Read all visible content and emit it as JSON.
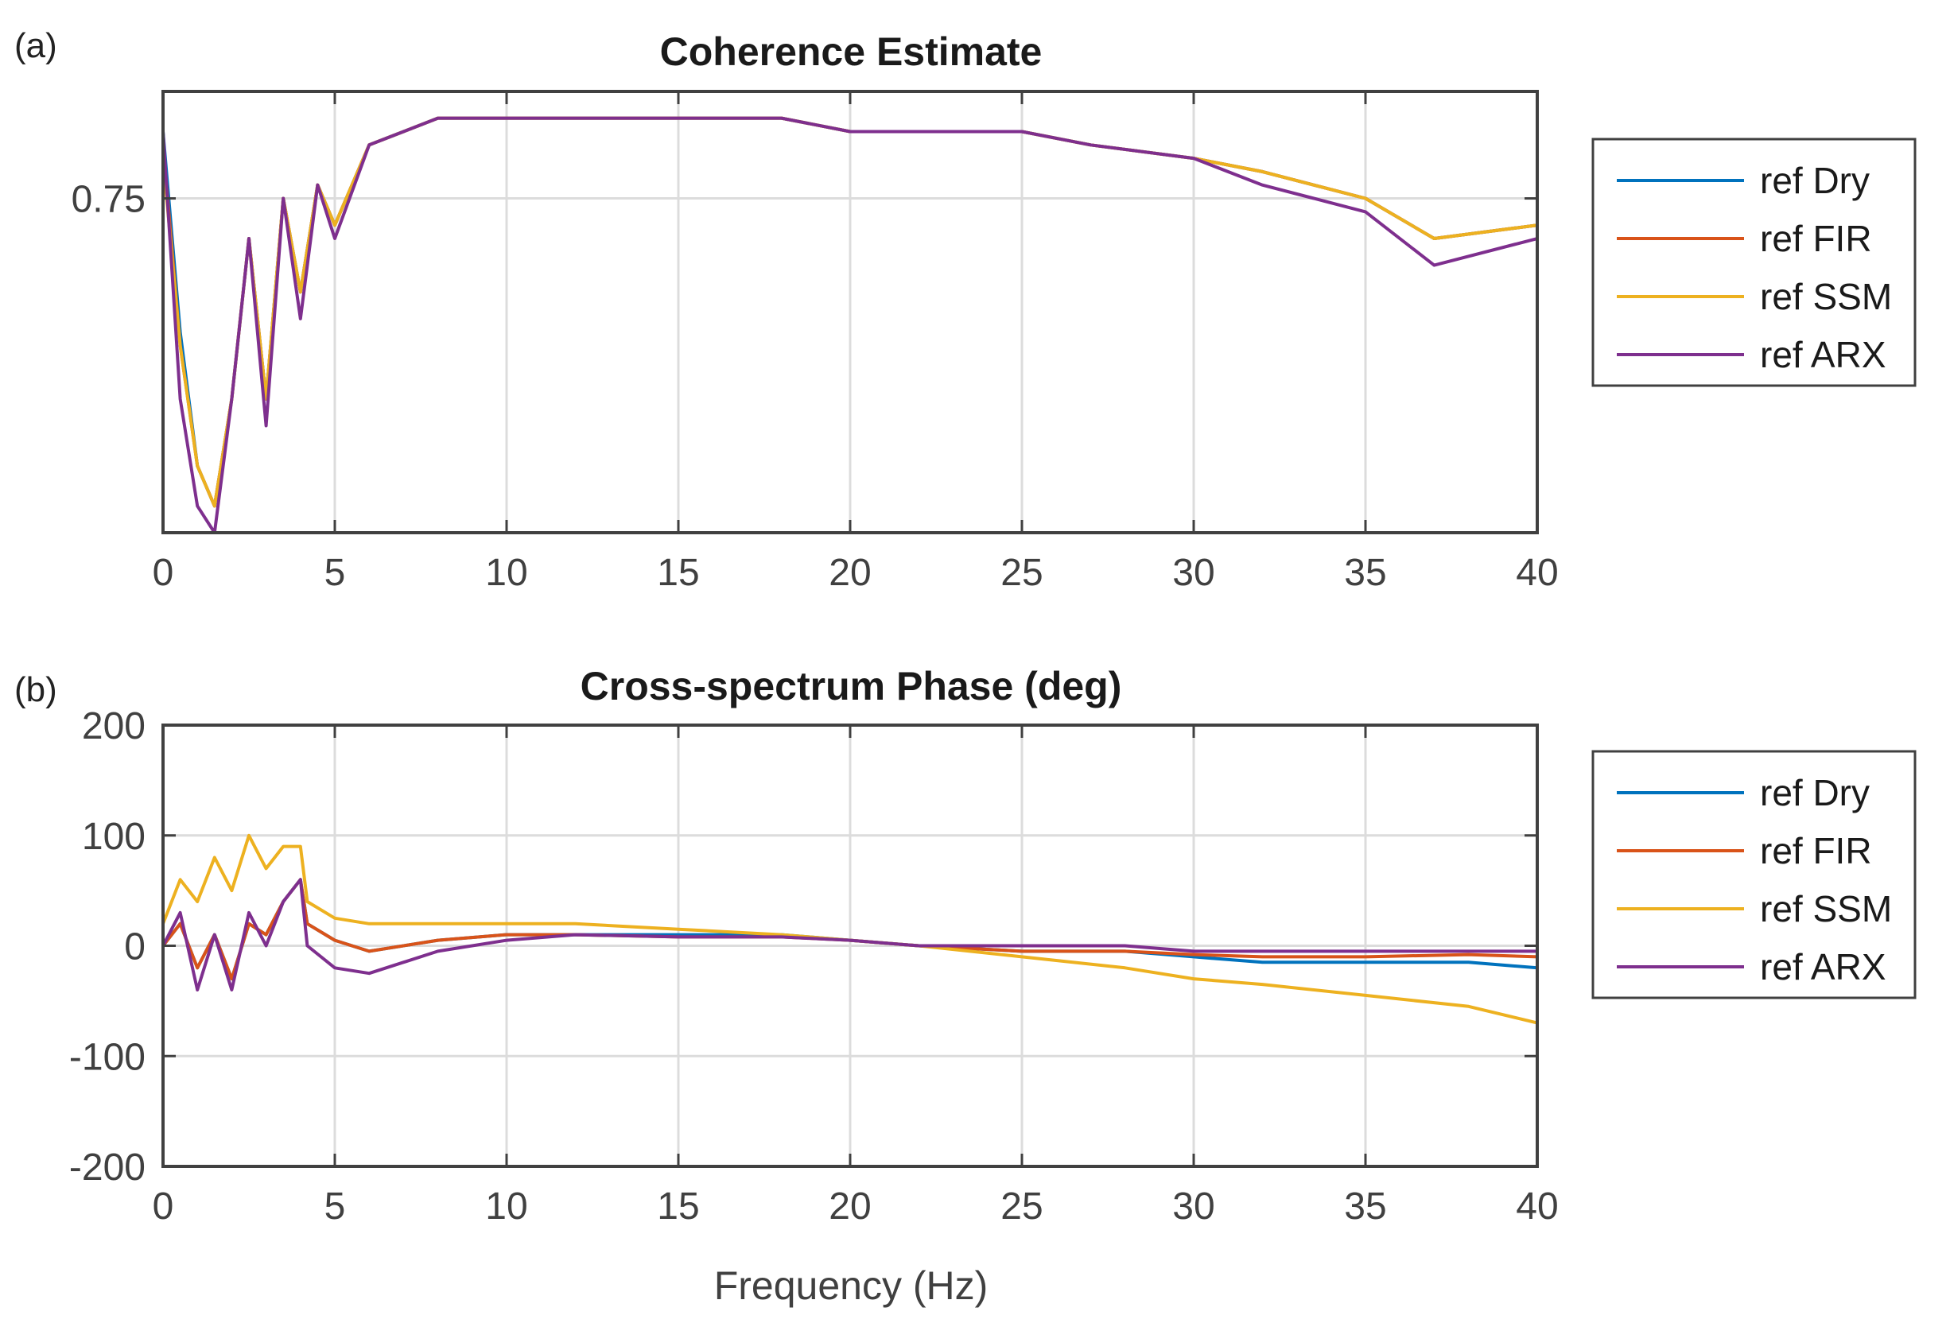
{
  "chart_data": [
    {
      "panel": "(a)",
      "type": "line",
      "title": "Coherence Estimate",
      "xlabel": "",
      "ylabel": "",
      "xlim": [
        0,
        40
      ],
      "ylim": [
        0.5,
        0.83
      ],
      "xticks": [
        0,
        5,
        10,
        15,
        20,
        25,
        30,
        35,
        40
      ],
      "yticks": [
        0.75
      ],
      "ytick_labels": [
        "0.75"
      ],
      "grid": true,
      "legend_position": "outside-right",
      "series": [
        {
          "name": "ref Dry",
          "color": "#0072BD",
          "x": [
            0,
            0.5,
            1,
            1.5,
            2,
            2.5,
            3,
            3.5,
            4,
            4.5,
            5,
            6,
            7,
            8,
            10,
            12,
            15,
            18,
            20,
            22,
            25,
            27,
            30,
            32,
            35,
            37,
            40
          ],
          "y": [
            0.8,
            0.65,
            0.55,
            0.52,
            0.6,
            0.72,
            0.6,
            0.75,
            0.68,
            0.76,
            0.73,
            0.79,
            0.8,
            0.81,
            0.81,
            0.81,
            0.81,
            0.81,
            0.8,
            0.8,
            0.8,
            0.79,
            0.78,
            0.77,
            0.75,
            0.72,
            0.73
          ]
        },
        {
          "name": "ref FIR",
          "color": "#D95319",
          "x": [
            0,
            0.5,
            1,
            1.5,
            2,
            2.5,
            3,
            3.5,
            4,
            4.5,
            5,
            6,
            7,
            8,
            10,
            12,
            15,
            18,
            20,
            22,
            25,
            27,
            30,
            32,
            35,
            37,
            40
          ],
          "y": [
            0.79,
            0.64,
            0.55,
            0.52,
            0.6,
            0.72,
            0.6,
            0.75,
            0.68,
            0.76,
            0.73,
            0.79,
            0.8,
            0.81,
            0.81,
            0.81,
            0.81,
            0.81,
            0.8,
            0.8,
            0.8,
            0.79,
            0.78,
            0.77,
            0.75,
            0.72,
            0.73
          ]
        },
        {
          "name": "ref SSM",
          "color": "#EDB120",
          "x": [
            0,
            0.5,
            1,
            1.5,
            2,
            2.5,
            3,
            3.5,
            4,
            4.5,
            5,
            6,
            7,
            8,
            10,
            12,
            15,
            18,
            20,
            22,
            25,
            27,
            30,
            32,
            35,
            37,
            40
          ],
          "y": [
            0.78,
            0.64,
            0.55,
            0.52,
            0.6,
            0.72,
            0.6,
            0.75,
            0.68,
            0.76,
            0.73,
            0.79,
            0.8,
            0.81,
            0.81,
            0.81,
            0.81,
            0.81,
            0.8,
            0.8,
            0.8,
            0.79,
            0.78,
            0.77,
            0.75,
            0.72,
            0.73
          ]
        },
        {
          "name": "ref ARX",
          "color": "#7E2F8E",
          "x": [
            0,
            0.5,
            1,
            1.5,
            2,
            2.5,
            3,
            3.5,
            4,
            4.5,
            5,
            6,
            7,
            8,
            10,
            12,
            15,
            18,
            20,
            22,
            25,
            27,
            30,
            32,
            35,
            37,
            40
          ],
          "y": [
            0.8,
            0.6,
            0.52,
            0.5,
            0.6,
            0.72,
            0.58,
            0.75,
            0.66,
            0.76,
            0.72,
            0.79,
            0.8,
            0.81,
            0.81,
            0.81,
            0.81,
            0.81,
            0.8,
            0.8,
            0.8,
            0.79,
            0.78,
            0.76,
            0.74,
            0.7,
            0.72
          ]
        }
      ]
    },
    {
      "panel": "(b)",
      "type": "line",
      "title": "Cross-spectrum Phase (deg)",
      "xlabel": "Frequency (Hz)",
      "ylabel": "",
      "xlim": [
        0,
        40
      ],
      "ylim": [
        -200,
        200
      ],
      "xticks": [
        0,
        5,
        10,
        15,
        20,
        25,
        30,
        35,
        40
      ],
      "yticks": [
        -200,
        -100,
        0,
        100,
        200
      ],
      "ytick_labels": [
        "-200",
        "-100",
        "0",
        "100",
        "200"
      ],
      "grid": true,
      "legend_position": "outside-right",
      "series": [
        {
          "name": "ref Dry",
          "color": "#0072BD",
          "x": [
            0,
            0.5,
            1,
            1.5,
            2,
            2.5,
            3,
            3.5,
            4,
            4.2,
            5,
            6,
            8,
            10,
            12,
            15,
            18,
            20,
            22,
            25,
            28,
            30,
            32,
            35,
            38,
            40
          ],
          "y": [
            0,
            20,
            -20,
            10,
            -30,
            20,
            10,
            40,
            60,
            20,
            5,
            -5,
            5,
            10,
            10,
            10,
            10,
            5,
            0,
            -5,
            -5,
            -10,
            -15,
            -15,
            -15,
            -20
          ]
        },
        {
          "name": "ref FIR",
          "color": "#D95319",
          "x": [
            0,
            0.5,
            1,
            1.5,
            2,
            2.5,
            3,
            3.5,
            4,
            4.2,
            5,
            6,
            8,
            10,
            12,
            15,
            18,
            20,
            22,
            25,
            28,
            30,
            32,
            35,
            38,
            40
          ],
          "y": [
            0,
            20,
            -20,
            10,
            -30,
            20,
            10,
            40,
            60,
            20,
            5,
            -5,
            5,
            10,
            10,
            8,
            8,
            5,
            0,
            -5,
            -5,
            -8,
            -10,
            -10,
            -8,
            -10
          ]
        },
        {
          "name": "ref SSM",
          "color": "#EDB120",
          "x": [
            0,
            0.5,
            1,
            1.5,
            2,
            2.5,
            3,
            3.5,
            4,
            4.2,
            5,
            6,
            8,
            10,
            12,
            15,
            18,
            20,
            22,
            25,
            28,
            30,
            32,
            35,
            38,
            40
          ],
          "y": [
            20,
            60,
            40,
            80,
            50,
            100,
            70,
            90,
            90,
            40,
            25,
            20,
            20,
            20,
            20,
            15,
            10,
            5,
            0,
            -10,
            -20,
            -30,
            -35,
            -45,
            -55,
            -70
          ]
        },
        {
          "name": "ref ARX",
          "color": "#7E2F8E",
          "x": [
            0,
            0.5,
            1,
            1.5,
            2,
            2.5,
            3,
            3.5,
            4,
            4.2,
            5,
            6,
            8,
            10,
            12,
            15,
            18,
            20,
            22,
            25,
            28,
            30,
            32,
            35,
            38,
            40
          ],
          "y": [
            0,
            30,
            -40,
            10,
            -40,
            30,
            0,
            40,
            60,
            0,
            -20,
            -25,
            -5,
            5,
            10,
            8,
            8,
            5,
            0,
            0,
            0,
            -5,
            -5,
            -5,
            -5,
            -5
          ]
        }
      ]
    }
  ]
}
